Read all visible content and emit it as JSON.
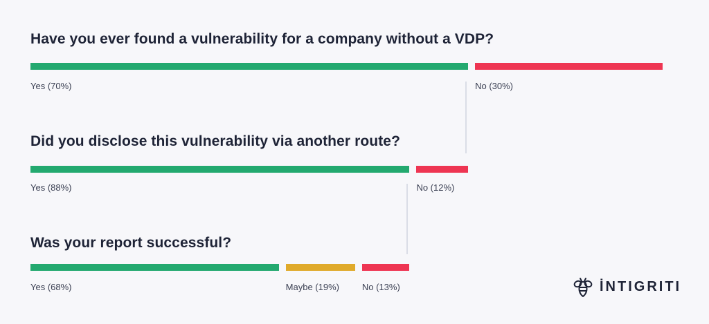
{
  "colors": {
    "yes": "#23a96f",
    "no": "#ee3552",
    "maybe": "#e0aa2a",
    "text": "#1e2336",
    "label": "#3a3f52",
    "connector": "#dadde6",
    "background": "#f7f7fa"
  },
  "brand": {
    "name": "İNTIGRITI",
    "icon": "bee-logo-icon"
  },
  "chart_data": [
    {
      "type": "bar",
      "orientation": "horizontal-stacked",
      "title": "Have you ever found a vulnerability for a company without a VDP?",
      "segments": [
        {
          "name": "Yes",
          "value": 70,
          "label": "Yes (70%)",
          "color": "#23a96f"
        },
        {
          "name": "No",
          "value": 30,
          "label": "No (30%)",
          "color": "#ee3552"
        }
      ]
    },
    {
      "type": "bar",
      "orientation": "horizontal-stacked",
      "title": "Did you disclose this vulnerability via another route?",
      "segments": [
        {
          "name": "Yes",
          "value": 88,
          "label": "Yes (88%)",
          "color": "#23a96f"
        },
        {
          "name": "No",
          "value": 12,
          "label": "No (12%)",
          "color": "#ee3552"
        }
      ]
    },
    {
      "type": "bar",
      "orientation": "horizontal-stacked",
      "title": "Was your report successful?",
      "segments": [
        {
          "name": "Yes",
          "value": 68,
          "label": "Yes (68%)",
          "color": "#23a96f"
        },
        {
          "name": "Maybe",
          "value": 19,
          "label": "Maybe (19%)",
          "color": "#e0aa2a"
        },
        {
          "name": "No",
          "value": 13,
          "label": "No (13%)",
          "color": "#ee3552"
        }
      ]
    }
  ]
}
